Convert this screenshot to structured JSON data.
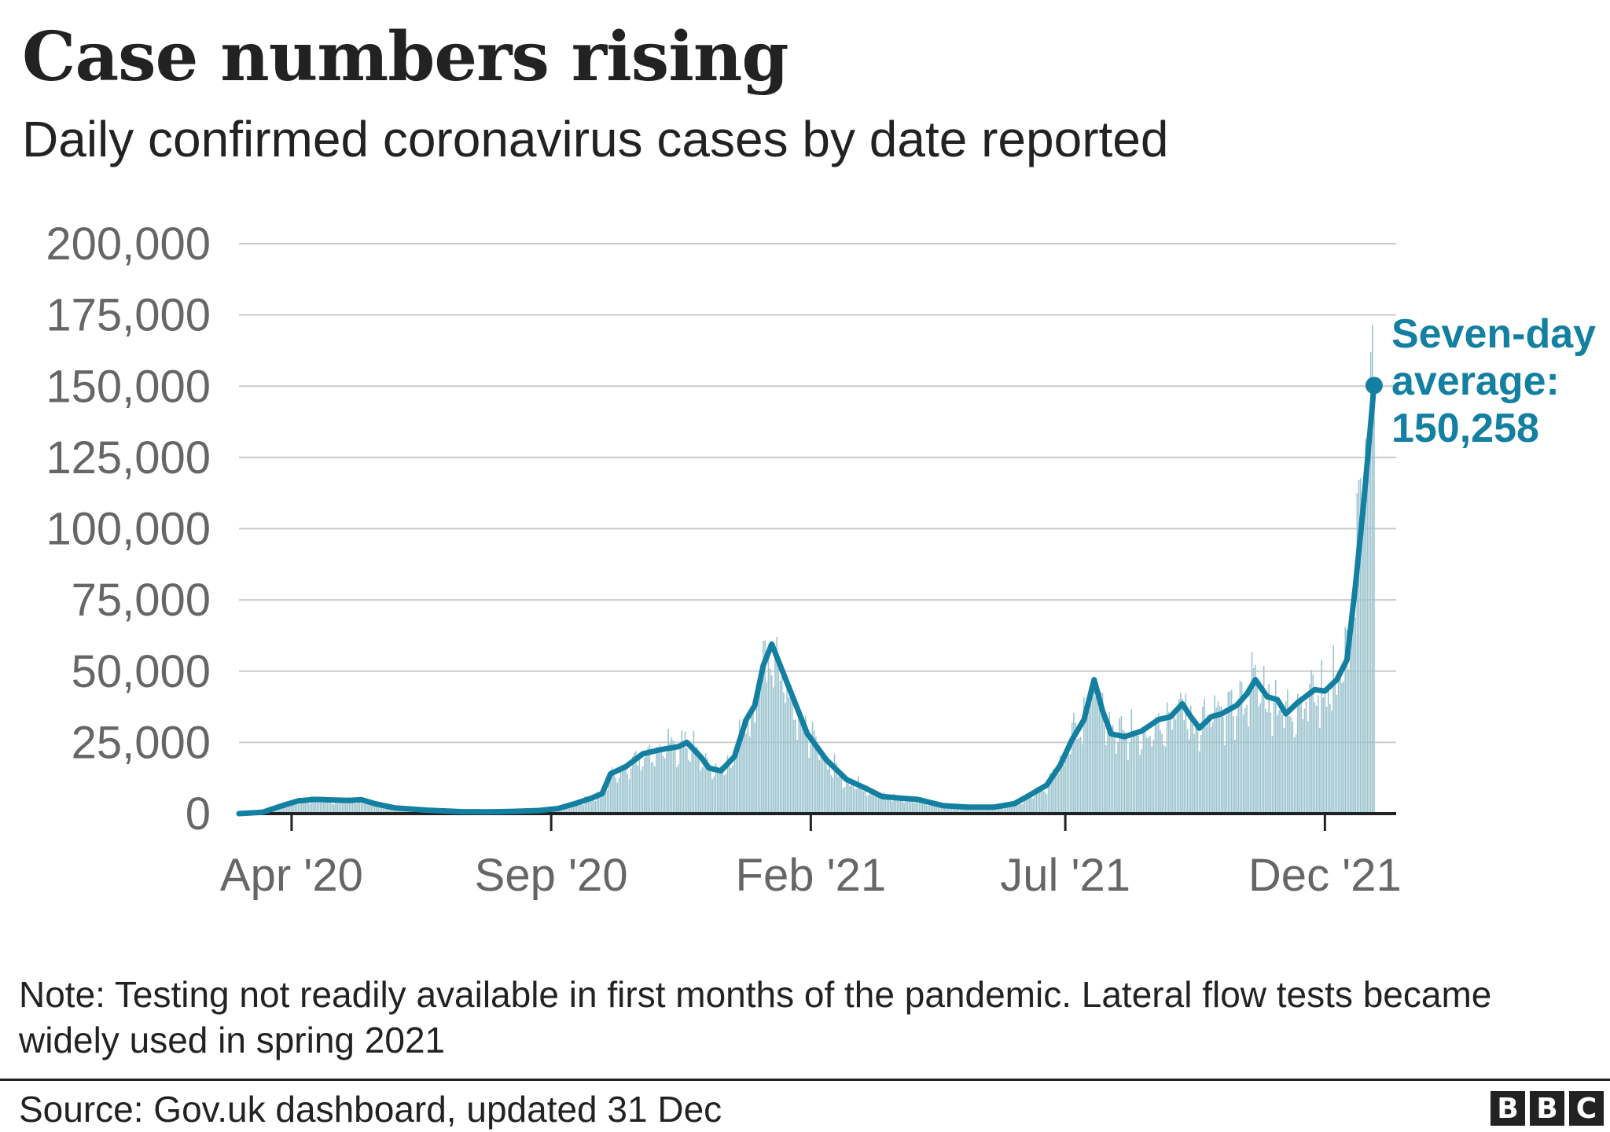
{
  "title": "Case numbers rising",
  "subtitle": "Daily confirmed coronavirus cases by date reported",
  "note": "Note: Testing not readily available in first months of the pandemic. Lateral flow tests became widely used in spring 2021",
  "source": "Source: Gov.uk dashboard, updated 31 Dec",
  "logo": [
    "B",
    "B",
    "C"
  ],
  "colors": {
    "line": "#1380a1",
    "bars": "#9cc4cf",
    "grid": "#cccccc",
    "axis": "#222222",
    "tick_text": "#666666"
  },
  "chart_data": {
    "type": "line",
    "title": "Case numbers rising",
    "subtitle": "Daily confirmed coronavirus cases by date reported",
    "x_range": [
      "2020-03-01",
      "2022-01-12"
    ],
    "ylim": [
      0,
      200000
    ],
    "yticks": [
      0,
      25000,
      50000,
      75000,
      100000,
      125000,
      150000,
      175000,
      200000
    ],
    "ytick_labels": [
      "0",
      "25,000",
      "50,000",
      "75,000",
      "100,000",
      "125,000",
      "150,000",
      "175,000",
      "200,000"
    ],
    "xticks": [
      {
        "date": "2020-04-01",
        "label": "Apr '20"
      },
      {
        "date": "2020-09-01",
        "label": "Sep '20"
      },
      {
        "date": "2021-02-01",
        "label": "Feb '21"
      },
      {
        "date": "2021-07-01",
        "label": "Jul '21"
      },
      {
        "date": "2021-12-01",
        "label": "Dec '21"
      }
    ],
    "grid": "horizontal",
    "daily_cases": {
      "name": "Daily cases",
      "style": "bars",
      "color": "#9cc4cf"
    },
    "series": [
      {
        "style": "line",
        "color": "#1380a1",
        "points": [
          [
            "2020-03-01",
            0
          ],
          [
            "2020-03-15",
            500
          ],
          [
            "2020-03-25",
            2500
          ],
          [
            "2020-04-05",
            4500
          ],
          [
            "2020-04-15",
            5000
          ],
          [
            "2020-04-25",
            4800
          ],
          [
            "2020-05-05",
            4600
          ],
          [
            "2020-05-12",
            4900
          ],
          [
            "2020-05-20",
            3500
          ],
          [
            "2020-06-01",
            2000
          ],
          [
            "2020-06-20",
            1200
          ],
          [
            "2020-07-10",
            700
          ],
          [
            "2020-07-25",
            600
          ],
          [
            "2020-08-10",
            800
          ],
          [
            "2020-08-25",
            1100
          ],
          [
            "2020-09-05",
            1800
          ],
          [
            "2020-09-15",
            3500
          ],
          [
            "2020-09-25",
            5500
          ],
          [
            "2020-10-01",
            7000
          ],
          [
            "2020-10-06",
            14000
          ],
          [
            "2020-10-15",
            16500
          ],
          [
            "2020-10-25",
            21000
          ],
          [
            "2020-11-05",
            22500
          ],
          [
            "2020-11-15",
            23500
          ],
          [
            "2020-11-20",
            25000
          ],
          [
            "2020-11-28",
            20000
          ],
          [
            "2020-12-03",
            16000
          ],
          [
            "2020-12-10",
            15000
          ],
          [
            "2020-12-18",
            20000
          ],
          [
            "2020-12-25",
            33000
          ],
          [
            "2020-12-30",
            38000
          ],
          [
            "2021-01-04",
            52000
          ],
          [
            "2021-01-09",
            59500
          ],
          [
            "2021-01-14",
            52000
          ],
          [
            "2021-01-22",
            40000
          ],
          [
            "2021-01-30",
            28000
          ],
          [
            "2021-02-10",
            19000
          ],
          [
            "2021-02-22",
            12000
          ],
          [
            "2021-03-05",
            9000
          ],
          [
            "2021-03-15",
            6000
          ],
          [
            "2021-03-25",
            5500
          ],
          [
            "2021-04-05",
            5000
          ],
          [
            "2021-04-20",
            2800
          ],
          [
            "2021-05-05",
            2300
          ],
          [
            "2021-05-20",
            2300
          ],
          [
            "2021-06-01",
            3500
          ],
          [
            "2021-06-10",
            6500
          ],
          [
            "2021-06-20",
            10000
          ],
          [
            "2021-06-28",
            17000
          ],
          [
            "2021-07-05",
            26000
          ],
          [
            "2021-07-12",
            33000
          ],
          [
            "2021-07-18",
            47000
          ],
          [
            "2021-07-23",
            36000
          ],
          [
            "2021-07-28",
            28000
          ],
          [
            "2021-08-05",
            27000
          ],
          [
            "2021-08-15",
            29000
          ],
          [
            "2021-08-25",
            33000
          ],
          [
            "2021-09-01",
            34000
          ],
          [
            "2021-09-08",
            38500
          ],
          [
            "2021-09-13",
            34000
          ],
          [
            "2021-09-18",
            30000
          ],
          [
            "2021-09-25",
            34000
          ],
          [
            "2021-10-01",
            35000
          ],
          [
            "2021-10-10",
            38000
          ],
          [
            "2021-10-16",
            42000
          ],
          [
            "2021-10-21",
            47000
          ],
          [
            "2021-10-28",
            41000
          ],
          [
            "2021-11-03",
            40000
          ],
          [
            "2021-11-08",
            35000
          ],
          [
            "2021-11-15",
            39000
          ],
          [
            "2021-11-25",
            43500
          ],
          [
            "2021-12-01",
            43000
          ],
          [
            "2021-12-08",
            47000
          ],
          [
            "2021-12-14",
            54000
          ],
          [
            "2021-12-19",
            80000
          ],
          [
            "2021-12-24",
            110000
          ],
          [
            "2021-12-30",
            150258
          ]
        ]
      }
    ],
    "annotation": {
      "lines": [
        "Seven-day",
        "average:",
        "150,258"
      ],
      "date": "2021-12-30",
      "value": 150258
    }
  }
}
